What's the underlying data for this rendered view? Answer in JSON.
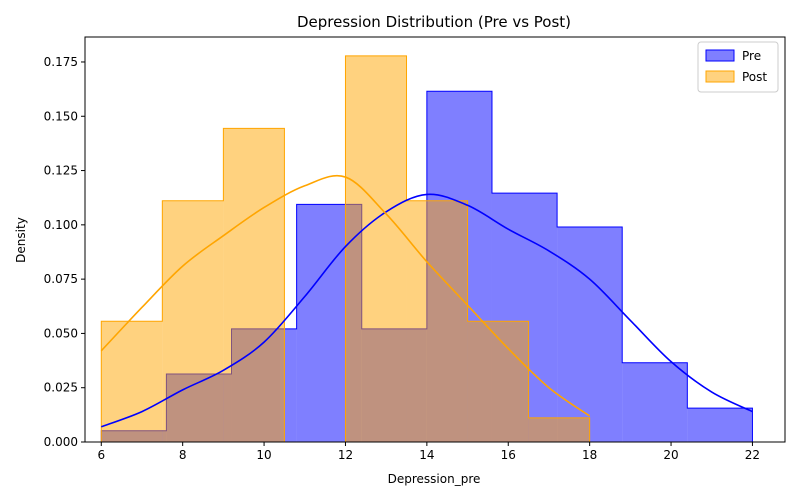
{
  "chart_data": {
    "type": "histogram",
    "title": "Depression Distribution (Pre vs Post)",
    "xlabel": "Depression_pre",
    "ylabel": "Density",
    "xlim": [
      5.6,
      22.8
    ],
    "ylim": [
      0,
      0.1865
    ],
    "xticks": [
      6,
      8,
      10,
      12,
      14,
      16,
      18,
      20,
      22
    ],
    "yticks": [
      0.0,
      0.025,
      0.05,
      0.075,
      0.1,
      0.125,
      0.15,
      0.175
    ],
    "ytick_labels": [
      "0.000",
      "0.025",
      "0.050",
      "0.075",
      "0.100",
      "0.125",
      "0.150",
      "0.175"
    ],
    "legend_position": "top-right",
    "grid": false,
    "series": [
      {
        "name": "Pre",
        "color": "#0000ff",
        "bin_edges": [
          6,
          7.6,
          9.2,
          10.8,
          12.4,
          14.0,
          15.6,
          17.2,
          18.8,
          20.4,
          22.0
        ],
        "density": [
          0.0052,
          0.0313,
          0.0521,
          0.1094,
          0.0521,
          0.1615,
          0.1146,
          0.099,
          0.0365,
          0.0156
        ],
        "kde": [
          [
            6,
            0.007
          ],
          [
            7,
            0.014
          ],
          [
            8,
            0.024
          ],
          [
            9,
            0.033
          ],
          [
            10,
            0.046
          ],
          [
            11,
            0.067
          ],
          [
            12,
            0.09
          ],
          [
            13,
            0.106
          ],
          [
            14,
            0.114
          ],
          [
            15,
            0.109
          ],
          [
            16,
            0.098
          ],
          [
            17,
            0.088
          ],
          [
            18,
            0.075
          ],
          [
            19,
            0.056
          ],
          [
            20,
            0.037
          ],
          [
            21,
            0.023
          ],
          [
            22,
            0.014
          ]
        ]
      },
      {
        "name": "Post",
        "color": "#ffa500",
        "bin_edges": [
          6,
          7.5,
          9.0,
          10.5,
          12.0,
          13.5,
          15.0,
          16.5,
          18.0
        ],
        "density": [
          0.0556,
          0.1111,
          0.1444,
          0.0,
          0.1778,
          0.1111,
          0.0556,
          0.0111
        ],
        "kde": [
          [
            6,
            0.042
          ],
          [
            7,
            0.062
          ],
          [
            8,
            0.081
          ],
          [
            9,
            0.095
          ],
          [
            10,
            0.108
          ],
          [
            11,
            0.118
          ],
          [
            12,
            0.122
          ],
          [
            13,
            0.105
          ],
          [
            14,
            0.083
          ],
          [
            15,
            0.063
          ],
          [
            16,
            0.043
          ],
          [
            17,
            0.025
          ],
          [
            18,
            0.012
          ]
        ]
      }
    ]
  }
}
